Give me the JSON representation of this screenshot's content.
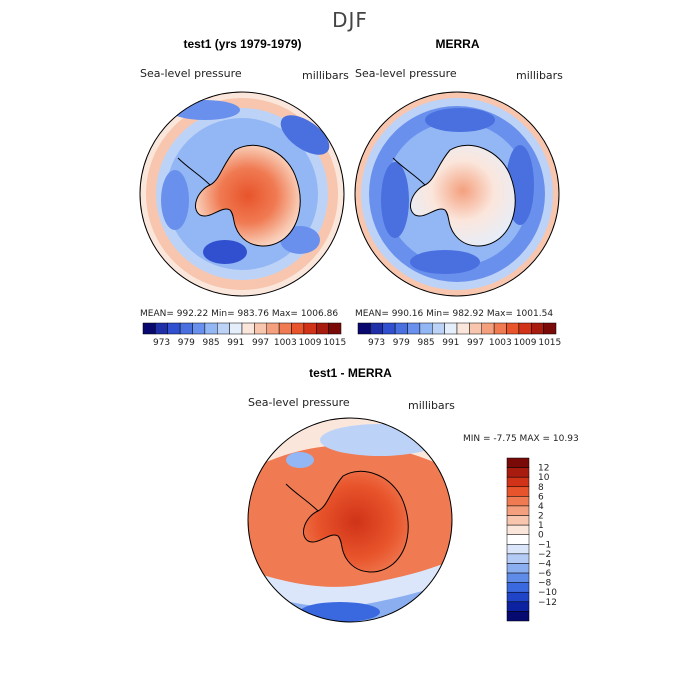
{
  "page": {
    "main_title": "DJF"
  },
  "colors": {
    "ocean_blue": "#6a9cf0",
    "land_red": "#f06a3c",
    "diff_red": "#e8542b",
    "coast": "#000000"
  },
  "chart_data": [
    {
      "type": "heatmap",
      "title": "test1 (yrs 1979-1979)",
      "field_label": "Sea-level pressure",
      "units": "millibars",
      "stats_text": "MEAN= 992.22   Min= 983.76   Max= 1006.86",
      "stats": {
        "mean": 992.22,
        "min": 983.76,
        "max": 1006.86
      },
      "colorbar": {
        "tick_labels": [
          "973",
          "979",
          "985",
          "991",
          "997",
          "1003",
          "1009",
          "1015"
        ],
        "colors": [
          "#08086e",
          "#1f2fa8",
          "#3050d0",
          "#4a70e0",
          "#6a90ee",
          "#93b6f4",
          "#bcd3f7",
          "#e5eefb",
          "#fbe6dc",
          "#f8c6ae",
          "#f4a07e",
          "#f07a52",
          "#e8542b",
          "#d03318",
          "#a81c10",
          "#7a0a08"
        ]
      }
    },
    {
      "type": "heatmap",
      "title": "MERRA",
      "field_label": "Sea-level pressure",
      "units": "millibars",
      "stats_text": "MEAN= 990.16   Min= 982.92   Max= 1001.54",
      "stats": {
        "mean": 990.16,
        "min": 982.92,
        "max": 1001.54
      },
      "colorbar": {
        "tick_labels": [
          "973",
          "979",
          "985",
          "991",
          "997",
          "1003",
          "1009",
          "1015"
        ],
        "colors": [
          "#08086e",
          "#1f2fa8",
          "#3050d0",
          "#4a70e0",
          "#6a90ee",
          "#93b6f4",
          "#bcd3f7",
          "#e5eefb",
          "#fbe6dc",
          "#f8c6ae",
          "#f4a07e",
          "#f07a52",
          "#e8542b",
          "#d03318",
          "#a81c10",
          "#7a0a08"
        ]
      }
    },
    {
      "type": "heatmap",
      "title": "test1 - MERRA",
      "field_label": "Sea-level pressure",
      "units": "millibars",
      "stats_text": "MIN =   -7.75 MAX =   10.93",
      "stats": {
        "min": -7.75,
        "max": 10.93
      },
      "colorbar": {
        "tick_labels": [
          "12",
          "10",
          "8",
          "6",
          "4",
          "2",
          "1",
          "0",
          "−1",
          "−2",
          "−4",
          "−6",
          "−8",
          "−10",
          "−12"
        ],
        "colors": [
          "#7a0a08",
          "#a81c10",
          "#d03318",
          "#e8542b",
          "#f07a52",
          "#f4a07e",
          "#f8c6ae",
          "#fbe6dc",
          "#ffffff",
          "#dbe6fb",
          "#b4ccf5",
          "#8aaef0",
          "#5f8ce8",
          "#3a68de",
          "#1f44c8",
          "#0c22a0",
          "#060a70"
        ]
      }
    }
  ]
}
